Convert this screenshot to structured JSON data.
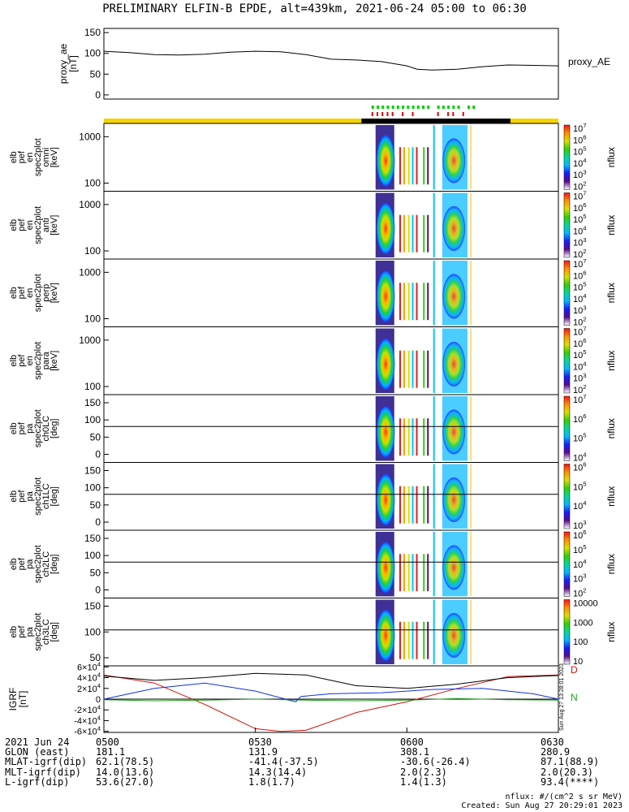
{
  "title": "PRELIMINARY ELFIN-B EPDE, alt=439km, 2021-06-24 05:00 to 06:30",
  "colors": {
    "orbit_bar_sunlit": "#f5d400",
    "orbit_bar_shadow": "#000000",
    "marker_green": "#00d000",
    "marker_red": "#e00000",
    "igrf_black": "#000000",
    "igrf_blue": "#1030e0",
    "igrf_green": "#20a020",
    "igrf_red": "#d01010"
  },
  "colorbar_stops": [
    "#ffffff",
    "#5b0a8a",
    "#1a1aff",
    "#00b8ff",
    "#00d8a0",
    "#30d000",
    "#d8e000",
    "#ff9000",
    "#ff1010"
  ],
  "chart_data": [
    {
      "type": "line",
      "panel": "proxy_ae",
      "ylabel": [
        "proxy_ae",
        "[nT]"
      ],
      "legend": "proxy_AE",
      "yticks": [
        "0",
        "50",
        "100",
        "150"
      ],
      "ylim": [
        -10,
        160
      ],
      "xlim": [
        "05:00",
        "06:30"
      ],
      "x_min": [
        0,
        5,
        10,
        15,
        20,
        25,
        30,
        35,
        40,
        45,
        50,
        55,
        60,
        62,
        65,
        70,
        75,
        80,
        85,
        90
      ],
      "y": [
        105,
        102,
        97,
        96,
        98,
        103,
        105,
        104,
        97,
        86,
        84,
        80,
        70,
        62,
        60,
        62,
        68,
        72,
        71,
        70
      ]
    },
    {
      "type": "heatmap",
      "panel": "omni",
      "ylabel": [
        "elb",
        "pef",
        "en",
        "spec2plot",
        "omni",
        "[keV]"
      ],
      "yticks": [
        "100",
        "1000"
      ],
      "cbar_ticks": [
        "10^2",
        "10^3",
        "10^4",
        "10^5",
        "10^6",
        "10^7"
      ],
      "cbar_label": "nflux"
    },
    {
      "type": "heatmap",
      "panel": "anti",
      "ylabel": [
        "elb",
        "pef",
        "en",
        "spec2plot",
        "anti",
        "[keV]"
      ],
      "yticks": [
        "100",
        "1000"
      ],
      "cbar_ticks": [
        "10^2",
        "10^3",
        "10^4",
        "10^5",
        "10^6",
        "10^7"
      ],
      "cbar_label": "nflux"
    },
    {
      "type": "heatmap",
      "panel": "perp",
      "ylabel": [
        "elb",
        "pef",
        "en",
        "spec2plot",
        "perp",
        "[keV]"
      ],
      "yticks": [
        "100",
        "1000"
      ],
      "cbar_ticks": [
        "10^2",
        "10^3",
        "10^4",
        "10^5",
        "10^6",
        "10^7"
      ],
      "cbar_label": "nflux"
    },
    {
      "type": "heatmap",
      "panel": "para",
      "ylabel": [
        "elb",
        "pef",
        "en",
        "spec2plot",
        "para",
        "[keV]"
      ],
      "yticks": [
        "100",
        "1000"
      ],
      "cbar_ticks": [
        "10^2",
        "10^3",
        "10^4",
        "10^5",
        "10^6",
        "10^7"
      ],
      "cbar_label": "nflux"
    },
    {
      "type": "heatmap",
      "panel": "ch0LC",
      "ylabel": [
        "elb",
        "pef",
        "pa",
        "spec2plot",
        "ch0LC",
        "[deg]"
      ],
      "yticks": [
        "0",
        "50",
        "100",
        "150"
      ],
      "cbar_ticks": [
        "10^4",
        "10^5",
        "10^6",
        "10^7"
      ],
      "cbar_label": "nflux"
    },
    {
      "type": "heatmap",
      "panel": "ch1LC",
      "ylabel": [
        "elb",
        "pef",
        "pa",
        "spec2plot",
        "ch1LC",
        "[deg]"
      ],
      "yticks": [
        "0",
        "50",
        "100",
        "150"
      ],
      "cbar_ticks": [
        "10^3",
        "10^4",
        "10^5",
        "10^6"
      ],
      "cbar_label": "nflux"
    },
    {
      "type": "heatmap",
      "panel": "ch2LC",
      "ylabel": [
        "elb",
        "pef",
        "pa",
        "spec2plot",
        "ch2LC",
        "[deg]"
      ],
      "yticks": [
        "0",
        "50",
        "100",
        "150"
      ],
      "cbar_ticks": [
        "10^2",
        "10^3",
        "10^4",
        "10^5",
        "10^6"
      ],
      "cbar_label": "nflux"
    },
    {
      "type": "heatmap",
      "panel": "ch3LC",
      "ylabel": [
        "elb",
        "pef",
        "pa",
        "spec2plot",
        "ch3LC",
        "[deg]"
      ],
      "yticks": [
        "50",
        "100",
        "150"
      ],
      "cbar_ticks": [
        "10",
        "100",
        "1000",
        "10000"
      ],
      "cbar_label": "nflux"
    },
    {
      "type": "line",
      "panel": "IGRF",
      "ylabel": [
        "IGRF",
        "[nT]"
      ],
      "yticks": [
        "-6×10^4",
        "-4×10^4",
        "-2×10^4",
        "0",
        "2×10^4",
        "4×10^4",
        "6×10^4"
      ],
      "ylim": [
        -62000,
        62000
      ],
      "side_labels": [
        "D",
        "N"
      ],
      "timestamp_note": "Sun Aug 27 13:28:01 2023",
      "series": [
        {
          "name": "D",
          "color": "#d01010",
          "x_min": [
            0,
            10,
            20,
            30,
            35,
            40,
            50,
            60,
            70,
            80,
            90
          ],
          "y": [
            45000,
            30000,
            -10000,
            -55000,
            -60000,
            -58000,
            -25000,
            -5000,
            20000,
            42000,
            45000
          ]
        },
        {
          "name": "N",
          "color": "#20a020",
          "x_min": [
            0,
            10,
            20,
            30,
            40,
            50,
            60,
            70,
            80,
            90
          ],
          "y": [
            -1000,
            -3000,
            -2000,
            0,
            -2000,
            -3000,
            -2000,
            1000,
            -1000,
            -2000
          ]
        },
        {
          "color": "#1030e0",
          "x_min": [
            0,
            10,
            20,
            30,
            38,
            39,
            45,
            55,
            65,
            75,
            85,
            90
          ],
          "y": [
            0,
            20000,
            30000,
            15000,
            -5000,
            5000,
            10000,
            12000,
            18000,
            20000,
            10000,
            0
          ]
        },
        {
          "color": "#000000",
          "x_min": [
            0,
            10,
            20,
            30,
            40,
            50,
            60,
            70,
            80,
            90
          ],
          "y": [
            43000,
            35000,
            40000,
            48000,
            45000,
            25000,
            20000,
            28000,
            40000,
            44000
          ]
        }
      ]
    }
  ],
  "footer": {
    "rows": [
      {
        "label": "2021 Jun 24",
        "values": [
          "0500",
          "0530",
          "0600",
          "0630"
        ]
      },
      {
        "label": "GLON (east)",
        "values": [
          "181.1",
          "131.9",
          "308.1",
          "280.9"
        ]
      },
      {
        "label": "MLAT-igrf(dip)",
        "values": [
          "62.1(78.5)",
          "-41.4(-37.5)",
          "-30.6(-26.4)",
          "87.1(88.9)"
        ]
      },
      {
        "label": "MLT-igrf(dip)",
        "values": [
          "14.0(13.6)",
          "14.3(14.4)",
          "2.0(2.3)",
          "2.0(20.3)"
        ]
      },
      {
        "label": "L-igrf(dip)",
        "values": [
          "53.6(27.0)",
          "1.8(1.7)",
          "1.4(1.3)",
          "93.4(****)"
        ]
      }
    ]
  },
  "notes": {
    "units": "nflux: #/(cm^2 s sr MeV)",
    "created": "Created: Sun Aug 27 20:29:01 2023"
  }
}
